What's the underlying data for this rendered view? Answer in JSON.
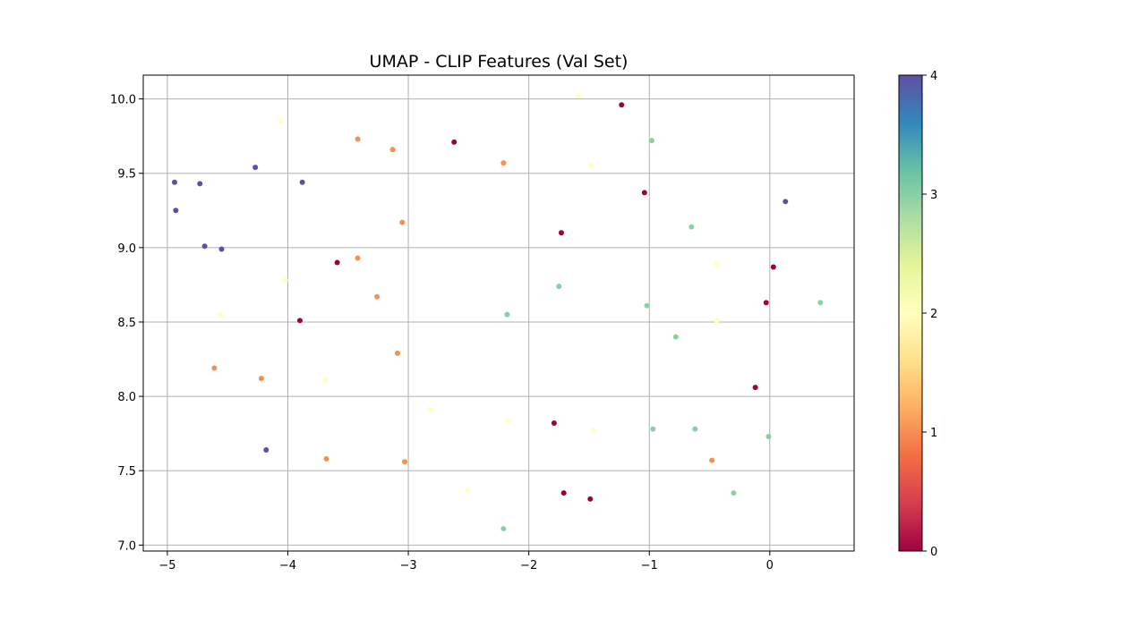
{
  "chart_data": {
    "type": "scatter",
    "title": "UMAP - CLIP Features (Val Set)",
    "xlabel": "",
    "ylabel": "",
    "xlim": [
      -5.2,
      0.7
    ],
    "ylim": [
      6.96,
      10.16
    ],
    "x_ticks": [
      -5,
      -4,
      -3,
      -2,
      -1,
      0
    ],
    "x_tick_labels": [
      "−5",
      "−4",
      "−3",
      "−2",
      "−1",
      "0"
    ],
    "y_ticks": [
      7.0,
      7.5,
      8.0,
      8.5,
      9.0,
      9.5,
      10.0
    ],
    "y_tick_labels": [
      "7.0",
      "7.5",
      "8.0",
      "8.5",
      "9.0",
      "9.5",
      "10.0"
    ],
    "grid": true,
    "colormap": "Spectral",
    "colormap_stops": [
      "#9e0142",
      "#d53e4f",
      "#f46d43",
      "#fdae61",
      "#fee08b",
      "#ffffbf",
      "#e6f598",
      "#abdda4",
      "#66c2a5",
      "#3288bd",
      "#5e4fa2"
    ],
    "colorbar": {
      "range": [
        0,
        4
      ],
      "ticks": [
        0,
        1,
        2,
        3,
        4
      ],
      "tick_labels": [
        "0",
        "1",
        "2",
        "3",
        "4"
      ]
    },
    "points": [
      {
        "x": -4.94,
        "y": 9.44,
        "c": 4
      },
      {
        "x": -4.93,
        "y": 9.25,
        "c": 4
      },
      {
        "x": -4.73,
        "y": 9.43,
        "c": 4
      },
      {
        "x": -4.69,
        "y": 9.01,
        "c": 4
      },
      {
        "x": -4.55,
        "y": 8.99,
        "c": 4
      },
      {
        "x": -4.27,
        "y": 9.54,
        "c": 4
      },
      {
        "x": -3.88,
        "y": 9.44,
        "c": 4
      },
      {
        "x": 0.13,
        "y": 9.31,
        "c": 4
      },
      {
        "x": -4.18,
        "y": 7.64,
        "c": 4
      },
      {
        "x": -2.62,
        "y": 9.71,
        "c": 0
      },
      {
        "x": -1.23,
        "y": 9.96,
        "c": 0
      },
      {
        "x": -1.04,
        "y": 9.37,
        "c": 0
      },
      {
        "x": -1.73,
        "y": 9.1,
        "c": 0
      },
      {
        "x": -3.59,
        "y": 8.9,
        "c": 0
      },
      {
        "x": -3.9,
        "y": 8.51,
        "c": 0
      },
      {
        "x": 0.03,
        "y": 8.87,
        "c": 0
      },
      {
        "x": -0.03,
        "y": 8.63,
        "c": 0
      },
      {
        "x": -0.12,
        "y": 8.06,
        "c": 0
      },
      {
        "x": -1.79,
        "y": 7.82,
        "c": 0
      },
      {
        "x": -1.71,
        "y": 7.35,
        "c": 0
      },
      {
        "x": -1.49,
        "y": 7.31,
        "c": 0
      },
      {
        "x": -3.42,
        "y": 9.73,
        "c": 1
      },
      {
        "x": -3.13,
        "y": 9.66,
        "c": 1
      },
      {
        "x": -2.21,
        "y": 9.57,
        "c": 1
      },
      {
        "x": -3.05,
        "y": 9.17,
        "c": 1
      },
      {
        "x": -3.42,
        "y": 8.93,
        "c": 1
      },
      {
        "x": -3.26,
        "y": 8.67,
        "c": 1
      },
      {
        "x": -3.09,
        "y": 8.29,
        "c": 1
      },
      {
        "x": -4.61,
        "y": 8.19,
        "c": 1
      },
      {
        "x": -4.22,
        "y": 8.12,
        "c": 1
      },
      {
        "x": -3.68,
        "y": 7.58,
        "c": 1
      },
      {
        "x": -3.03,
        "y": 7.56,
        "c": 1
      },
      {
        "x": -0.48,
        "y": 7.57,
        "c": 1
      },
      {
        "x": -4.06,
        "y": 9.85,
        "c": 2
      },
      {
        "x": -1.59,
        "y": 10.02,
        "c": 2
      },
      {
        "x": -1.48,
        "y": 9.55,
        "c": 2
      },
      {
        "x": -4.02,
        "y": 8.78,
        "c": 2
      },
      {
        "x": -4.56,
        "y": 8.55,
        "c": 2
      },
      {
        "x": -3.69,
        "y": 8.11,
        "c": 2
      },
      {
        "x": -2.82,
        "y": 7.91,
        "c": 2
      },
      {
        "x": -2.18,
        "y": 7.84,
        "c": 2
      },
      {
        "x": -1.47,
        "y": 7.77,
        "c": 2
      },
      {
        "x": -2.51,
        "y": 7.37,
        "c": 2
      },
      {
        "x": -0.44,
        "y": 8.89,
        "c": 2
      },
      {
        "x": -0.44,
        "y": 8.51,
        "c": 2
      },
      {
        "x": -0.98,
        "y": 9.72,
        "c": 3
      },
      {
        "x": -0.65,
        "y": 9.14,
        "c": 3
      },
      {
        "x": -1.75,
        "y": 8.74,
        "c": 3
      },
      {
        "x": -2.18,
        "y": 8.55,
        "c": 3
      },
      {
        "x": -1.02,
        "y": 8.61,
        "c": 3
      },
      {
        "x": -0.78,
        "y": 8.4,
        "c": 3
      },
      {
        "x": 0.42,
        "y": 8.63,
        "c": 3
      },
      {
        "x": -0.97,
        "y": 7.78,
        "c": 3
      },
      {
        "x": -0.62,
        "y": 7.78,
        "c": 3
      },
      {
        "x": -0.01,
        "y": 7.73,
        "c": 3
      },
      {
        "x": -0.3,
        "y": 7.35,
        "c": 3
      },
      {
        "x": -2.21,
        "y": 7.11,
        "c": 3
      }
    ]
  }
}
